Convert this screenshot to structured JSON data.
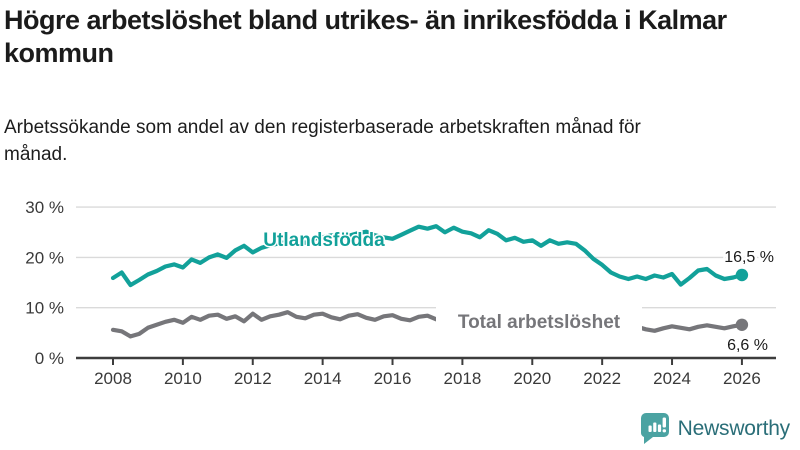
{
  "header": {
    "title": "Högre arbetslöshet bland utrikes- än inrikesfödda i Kalmar kommun",
    "subtitle": "Arbetssökande som andel av den registerbaserade arbetskraften månad för månad."
  },
  "chart_data": {
    "type": "line",
    "x_start": 2008,
    "x_step_years": 0.25,
    "x_end": 2026,
    "xticks": [
      2008,
      2010,
      2012,
      2014,
      2016,
      2018,
      2020,
      2022,
      2024,
      2026
    ],
    "ytick_values": [
      0,
      10,
      20,
      30
    ],
    "ytick_labels": [
      "0 %",
      "10 %",
      "20 %",
      "30 %"
    ],
    "ylim": [
      0,
      32
    ],
    "grid": true,
    "legend_position": "inline-labels",
    "series": [
      {
        "name": "Utlandsfödda",
        "color": "#12a19a",
        "end_label": "16,5 %",
        "values": [
          15.9,
          17.0,
          14.5,
          15.5,
          16.6,
          17.3,
          18.2,
          18.6,
          18.0,
          19.6,
          18.9,
          20.0,
          20.6,
          19.9,
          21.4,
          22.3,
          21.0,
          21.9,
          22.4,
          22.8,
          23.1,
          23.5,
          22.9,
          23.7,
          24.0,
          24.4,
          23.8,
          24.3,
          24.8,
          25.1,
          24.4,
          24.0,
          23.7,
          24.5,
          25.3,
          26.1,
          25.7,
          26.2,
          25.0,
          25.9,
          25.1,
          24.8,
          24.0,
          25.4,
          24.7,
          23.4,
          23.9,
          23.1,
          23.4,
          22.3,
          23.4,
          22.7,
          23.0,
          22.7,
          21.4,
          19.7,
          18.5,
          17.0,
          16.2,
          15.7,
          16.2,
          15.7,
          16.4,
          16.0,
          16.7,
          14.6,
          15.9,
          17.4,
          17.7,
          16.4,
          15.7,
          16.0,
          16.5
        ]
      },
      {
        "name": "Total arbetslöshet",
        "color": "#76767a",
        "end_label": "6,6 %",
        "values": [
          5.6,
          5.3,
          4.3,
          4.8,
          6.0,
          6.6,
          7.2,
          7.6,
          7.0,
          8.2,
          7.6,
          8.4,
          8.6,
          7.8,
          8.3,
          7.3,
          8.8,
          7.6,
          8.3,
          8.6,
          9.1,
          8.2,
          7.9,
          8.6,
          8.8,
          8.1,
          7.7,
          8.4,
          8.7,
          8.0,
          7.6,
          8.3,
          8.5,
          7.8,
          7.5,
          8.2,
          8.4,
          7.7,
          7.3,
          7.9,
          8.0,
          7.4,
          7.0,
          7.6,
          7.8,
          7.3,
          7.1,
          7.7,
          8.1,
          9.0,
          9.2,
          8.8,
          8.7,
          8.2,
          7.6,
          7.3,
          7.0,
          6.5,
          6.0,
          5.8,
          6.2,
          5.7,
          5.4,
          5.9,
          6.3,
          6.0,
          5.7,
          6.2,
          6.5,
          6.2,
          5.9,
          6.3,
          6.6
        ]
      }
    ],
    "colors": {
      "grid": "#dadada",
      "axis": "#3d3d3d",
      "tick_text": "#3a3a3a"
    }
  },
  "branding": {
    "logo_text": "Newsworthy",
    "logo_icon": "bar-chart-speech-bubble-icon",
    "logo_bubble_color": "#4ba3a2",
    "logo_text_color": "#2a6e78"
  }
}
